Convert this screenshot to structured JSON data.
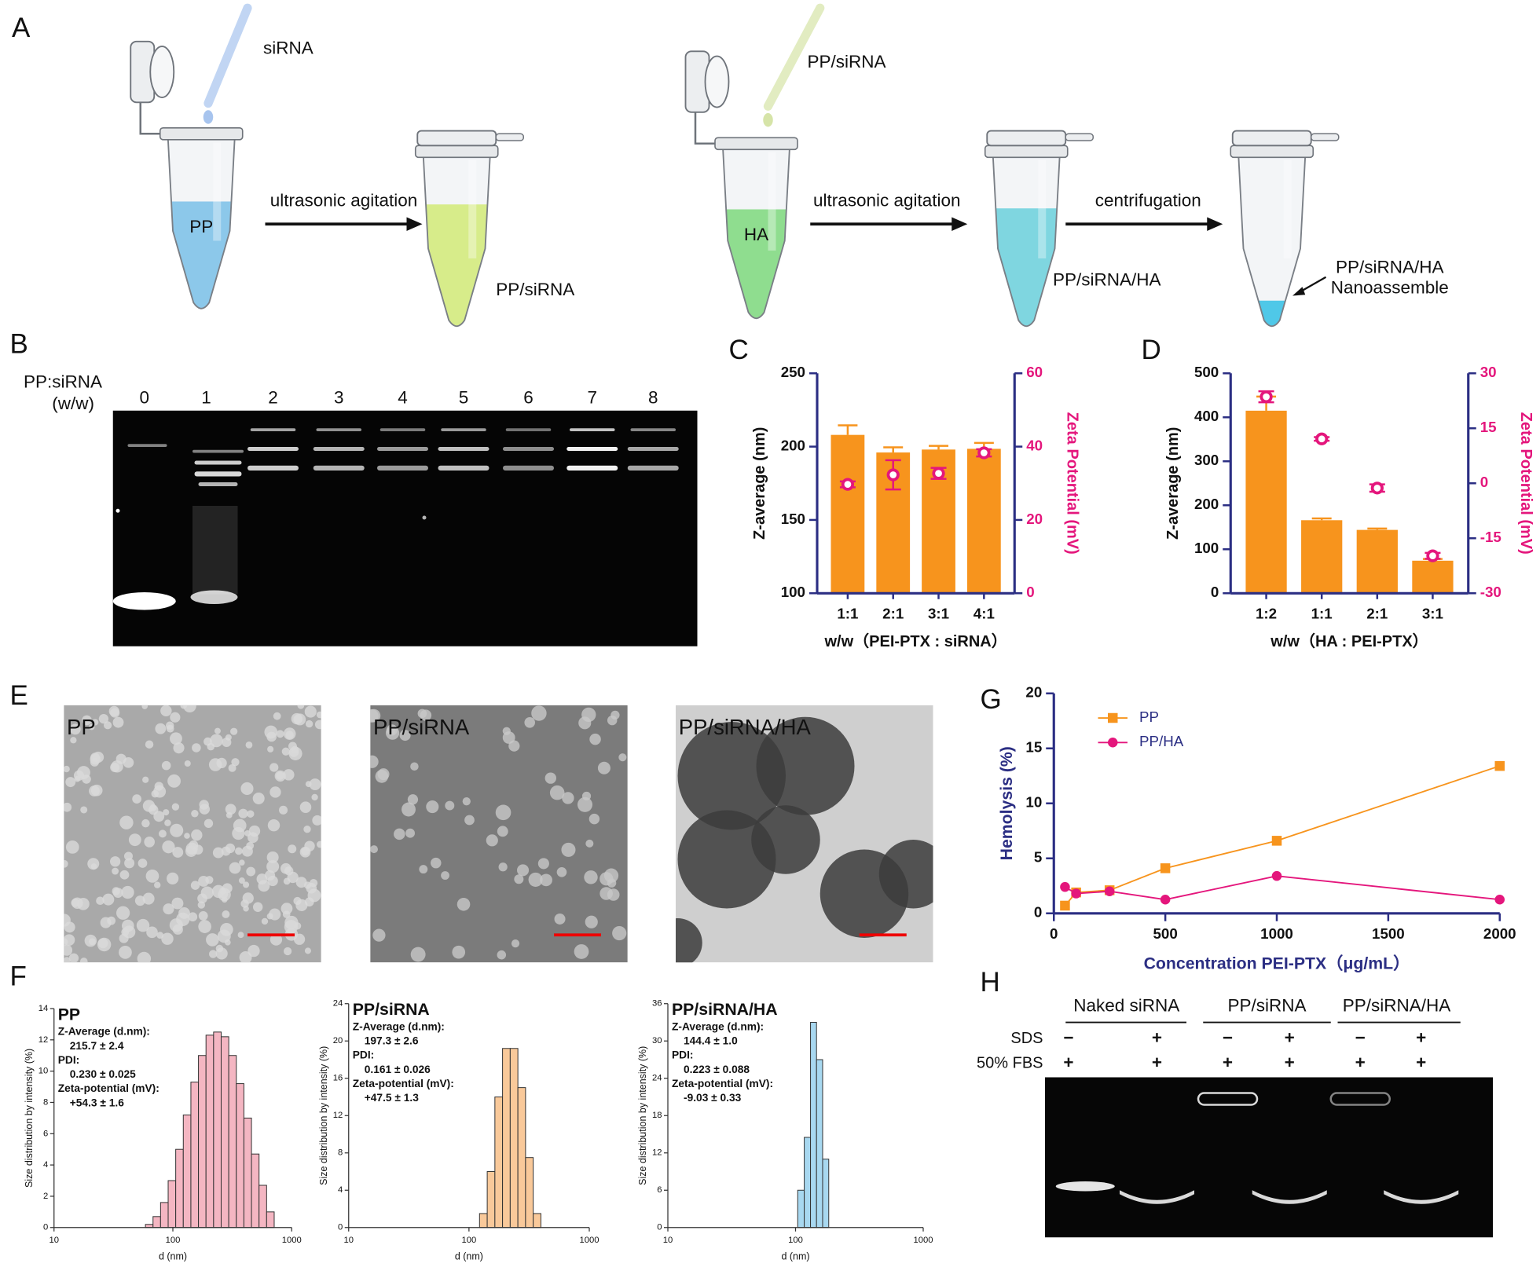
{
  "panel_labels": [
    "A",
    "B",
    "C",
    "D",
    "E",
    "F",
    "G",
    "H"
  ],
  "panel_a": {
    "pipette_1": "siRNA",
    "tube_1": "PP",
    "step_1": "ultrasonic agitation",
    "tube_2": "PP/siRNA",
    "pipette_2": "PP/siRNA",
    "tube_3": "HA",
    "step_2": "ultrasonic agitation",
    "tube_4": "PP/siRNA/HA",
    "step_3": "centrifugation",
    "tube_5": [
      "PP/siRNA/HA",
      "Nanoassemble"
    ]
  },
  "panel_b": {
    "axis_label": [
      "PP:siRNA",
      "(w/w)"
    ],
    "lanes": [
      "0",
      "1",
      "2",
      "3",
      "4",
      "5",
      "6",
      "7",
      "8"
    ]
  },
  "panel_e": {
    "images": [
      "PP",
      "PP/siRNA",
      "PP/siRNA/HA"
    ]
  },
  "panel_h": {
    "groups": [
      "Naked siRNA",
      "PP/siRNA",
      "PP/siRNA/HA"
    ],
    "rows": [
      {
        "label": "SDS",
        "signs": [
          "−",
          "+",
          "−",
          "+",
          "−",
          "+"
        ]
      },
      {
        "label": "50% FBS",
        "signs": [
          "+",
          "+",
          "+",
          "+",
          "+",
          "+"
        ]
      }
    ]
  },
  "chart_data": [
    {
      "type": "bar",
      "categories": [
        "1:1",
        "2:1",
        "3:1",
        "4:1"
      ],
      "x_label": "w/w（PEI-PTX : siRNA）",
      "y_label": "Z-average (nm)",
      "y2_label": "Zeta Potential (mV)",
      "ylim": [
        100,
        250
      ],
      "yticks": [
        100,
        150,
        200,
        250
      ],
      "y2lim": [
        0,
        60
      ],
      "y2ticks": [
        0,
        20,
        40,
        60
      ],
      "series": [
        {
          "type": "bar",
          "color": "#f7941d",
          "values": [
            208,
            196,
            198,
            198.5
          ],
          "errors": [
            6.5,
            3.5,
            2.5,
            4
          ]
        },
        {
          "type": "scatter",
          "axis": "y2",
          "color": "#e4167c",
          "values": [
            29.7,
            32.3,
            32.7,
            38.3
          ],
          "errors": [
            0.8,
            4,
            1.5,
            1
          ]
        }
      ]
    },
    {
      "type": "bar",
      "categories": [
        "1:2",
        "1:1",
        "2:1",
        "3:1"
      ],
      "x_label": "w/w（HA : PEI-PTX）",
      "y_label": "Z-average (nm)",
      "y2_label": "Zeta Potential (mV)",
      "ylim": [
        0,
        500
      ],
      "yticks": [
        0,
        100,
        200,
        300,
        400,
        500
      ],
      "y2lim": [
        -30,
        30
      ],
      "y2ticks": [
        -30,
        -15,
        0,
        15,
        30
      ],
      "series": [
        {
          "type": "bar",
          "color": "#f7941d",
          "values": [
            415,
            166,
            144,
            74
          ],
          "errors": [
            32,
            4,
            3,
            4
          ]
        },
        {
          "type": "scatter",
          "axis": "y2",
          "color": "#e4167c",
          "values": [
            23.6,
            12.1,
            -1.3,
            -19.8
          ],
          "errors": [
            1.5,
            0.5,
            1,
            0.8
          ]
        }
      ]
    },
    {
      "type": "histogram",
      "title": "PP",
      "stats": [
        "Z-Average (d.nm):",
        "215.7 ± 2.4",
        "PDI:",
        "0.230 ± 0.025",
        "Zeta-potential (mV):",
        "+54.3 ± 1.6"
      ],
      "x_label": "d (nm)",
      "y_label": "Size distribution by intensity (%)",
      "xlog": true,
      "xlim": [
        10,
        1000
      ],
      "xticks": [
        10,
        100,
        1000
      ],
      "ylim": [
        0,
        14
      ],
      "yticks": [
        0,
        2,
        4,
        6,
        8,
        10,
        12,
        14
      ],
      "color": "#f4b6c2",
      "bins": [
        58.8,
        68.1,
        78.8,
        91.3,
        105.7,
        122.4,
        141.8,
        164.2,
        190.1,
        220.2,
        255.0,
        295.3,
        342.0,
        396.1,
        458.7,
        531.2,
        615.1,
        712.4
      ],
      "values": [
        0.2,
        0.7,
        1.6,
        3.0,
        5.0,
        7.2,
        9.3,
        11.0,
        12.3,
        12.5,
        12.2,
        11.0,
        9.2,
        7.0,
        4.7,
        2.7,
        1.0
      ]
    },
    {
      "type": "histogram",
      "title": "PP/siRNA",
      "stats": [
        "Z-Average (d.nm):",
        "197.3 ± 2.6",
        "PDI:",
        "0.161 ± 0.026",
        "Zeta-potential (mV):",
        "+47.5 ± 1.3"
      ],
      "x_label": "d (nm)",
      "y_label": "Size distribution by intensity (%)",
      "xlog": true,
      "xlim": [
        10,
        1000
      ],
      "xticks": [
        10,
        100,
        1000
      ],
      "ylim": [
        0,
        24
      ],
      "yticks": [
        0,
        4,
        8,
        12,
        16,
        20,
        24
      ],
      "color": "#f9c99a",
      "bins": [
        122.4,
        141.8,
        164.2,
        190.1,
        220.2,
        255.0,
        295.3,
        342.0,
        396.1
      ],
      "values": [
        1.5,
        6,
        14,
        19.2,
        19.2,
        15,
        7.5,
        1.5
      ]
    },
    {
      "type": "histogram",
      "title": "PP/siRNA/HA",
      "stats": [
        "Z-Average (d.nm):",
        "144.4 ± 1.0",
        "PDI:",
        "0.223 ± 0.088",
        "Zeta-potential (mV):",
        "-9.03 ± 0.33"
      ],
      "x_label": "d (nm)",
      "y_label": "Size distribution by intensity (%)",
      "xlog": true,
      "xlim": [
        10,
        1000
      ],
      "xticks": [
        10,
        100,
        1000
      ],
      "ylim": [
        0,
        36
      ],
      "yticks": [
        0,
        6,
        12,
        18,
        24,
        30,
        36
      ],
      "color": "#a8d8f0",
      "bins": [
        104,
        117,
        131,
        146,
        163,
        182
      ],
      "values": [
        6,
        14.5,
        33,
        27,
        11
      ]
    },
    {
      "type": "line",
      "x": [
        50,
        100,
        250,
        500,
        1000,
        2000
      ],
      "xlim": [
        0,
        2000
      ],
      "xticks": [
        0,
        500,
        1000,
        1500,
        2000
      ],
      "ylim": [
        0,
        20
      ],
      "yticks": [
        0,
        5,
        10,
        15,
        20
      ],
      "x_label": "Concentration  PEI-PTX（μg/mL）",
      "y_label": "Hemolysis (%)",
      "legend": "upper left",
      "series": [
        {
          "name": "PP",
          "color": "#f7941d",
          "marker": "square",
          "values": [
            0.7,
            1.9,
            2.1,
            4.1,
            6.6,
            13.4
          ]
        },
        {
          "name": "PP/HA",
          "color": "#e4167c",
          "marker": "circle",
          "values": [
            2.4,
            1.8,
            2.0,
            1.25,
            3.4,
            1.25
          ]
        }
      ]
    }
  ]
}
